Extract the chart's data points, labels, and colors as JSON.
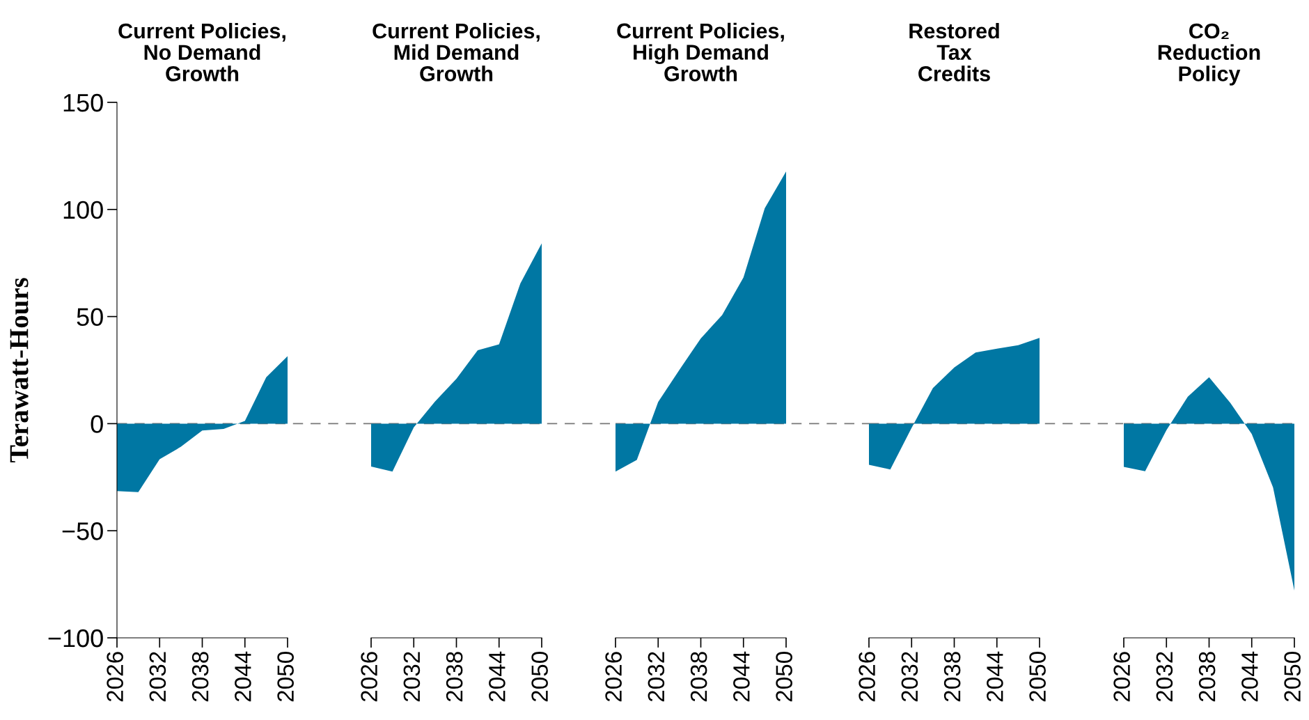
{
  "chart_data": [
    {
      "type": "area",
      "title": "Current Policies,\nNo Demand\nGrowth",
      "ylabel": "Terawatt-Hours",
      "x": [
        2026,
        2029,
        2032,
        2035,
        2038,
        2041,
        2044,
        2047,
        2050
      ],
      "values": [
        -31.5,
        -32,
        -16.6,
        -10.8,
        -3.2,
        -2.5,
        1.3,
        21.7,
        31.5
      ],
      "color": "#0077a3",
      "xlim": [
        2026,
        2050
      ],
      "xticks": [
        2026,
        2032,
        2038,
        2044,
        2050
      ],
      "ylim": [
        -100,
        150
      ],
      "yticks": [
        {
          "value": -100,
          "label": "−100"
        },
        {
          "value": -50,
          "label": "−50"
        },
        0,
        50,
        100,
        150
      ],
      "ref_lines": [
        {
          "axis": "y",
          "value": 0,
          "color": "#777777",
          "line_style": "dashed"
        }
      ]
    },
    {
      "type": "area",
      "title": "Current Policies,\nMid Demand\nGrowth",
      "x": [
        2026,
        2029,
        2032,
        2035,
        2038,
        2041,
        2044,
        2047,
        2050
      ],
      "values": [
        -20,
        -22.4,
        -1.7,
        10.4,
        20.9,
        34.3,
        37,
        65.5,
        84.2
      ],
      "color": "#0077a3",
      "xlim": [
        2026,
        2050
      ],
      "xticks": [
        2026,
        2032,
        2038,
        2044,
        2050
      ],
      "ylim": [
        -100,
        150
      ],
      "tick_labels": "x",
      "ref_lines": [
        {
          "axis": "y",
          "value": 0,
          "color": "#777777",
          "line_style": "dashed"
        }
      ]
    },
    {
      "type": "area",
      "title": "Current Policies,\nHigh Demand\nGrowth",
      "x": [
        2026,
        2029,
        2032,
        2035,
        2038,
        2041,
        2044,
        2047,
        2050
      ],
      "values": [
        -22.4,
        -16.9,
        10.1,
        25.2,
        39.8,
        50.7,
        68.2,
        100.6,
        117.7
      ],
      "color": "#0077a3",
      "xlim": [
        2026,
        2050
      ],
      "xticks": [
        2026,
        2032,
        2038,
        2044,
        2050
      ],
      "ylim": [
        -100,
        150
      ],
      "tick_labels": "x",
      "ref_lines": [
        {
          "axis": "y",
          "value": 0,
          "color": "#777777",
          "line_style": "dashed"
        }
      ]
    },
    {
      "type": "area",
      "title": "Restored\nTax\nCredits",
      "x": [
        2026,
        2029,
        2032,
        2035,
        2038,
        2041,
        2044,
        2047,
        2050
      ],
      "values": [
        -19.2,
        -21.4,
        -2,
        16.6,
        26.2,
        33.2,
        35,
        36.6,
        40
      ],
      "color": "#0077a3",
      "xlim": [
        2026,
        2050
      ],
      "xticks": [
        2026,
        2032,
        2038,
        2044,
        2050
      ],
      "ylim": [
        -100,
        150
      ],
      "tick_labels": "x",
      "ref_lines": [
        {
          "axis": "y",
          "value": 0,
          "color": "#777777",
          "line_style": "dashed"
        }
      ]
    },
    {
      "type": "area",
      "title": "CO₂\nReduction\nPolicy",
      "x": [
        2026,
        2029,
        2032,
        2035,
        2038,
        2041,
        2044,
        2047,
        2050
      ],
      "values": [
        -20.2,
        -22.2,
        -3,
        12.6,
        21.7,
        9.6,
        -4.8,
        -29.8,
        -77.9
      ],
      "color": "#0077a3",
      "xlim": [
        2026,
        2050
      ],
      "xticks": [
        2026,
        2032,
        2038,
        2044,
        2050
      ],
      "ylim": [
        -100,
        150
      ],
      "tick_labels": "x",
      "ref_lines": [
        {
          "axis": "y",
          "value": 0,
          "color": "#777777",
          "line_style": "dashed"
        }
      ]
    }
  ]
}
